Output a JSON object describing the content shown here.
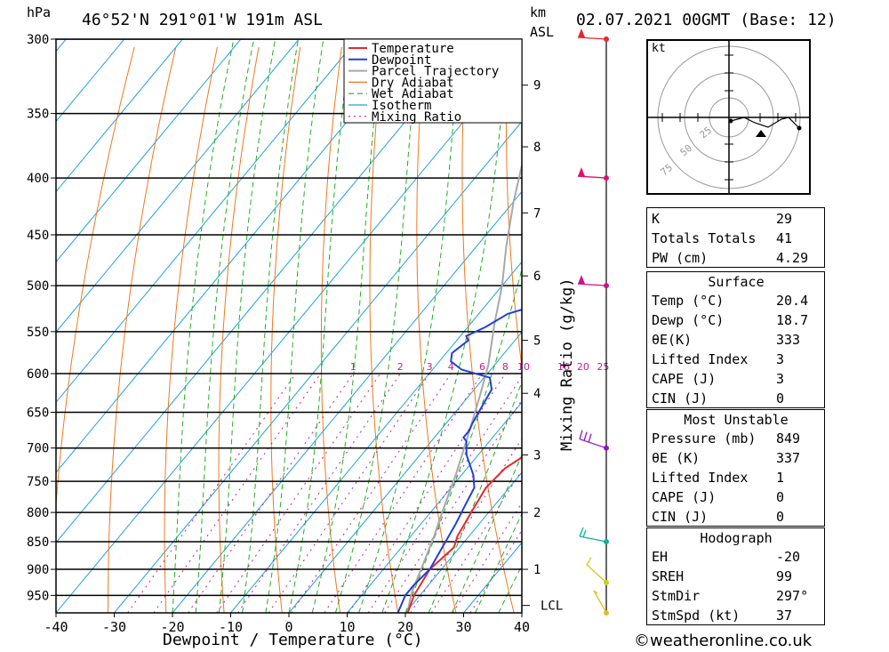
{
  "header": {
    "pressure_unit": "hPa",
    "location": "46°52'N 291°01'W 191m ASL",
    "height_unit": "km",
    "height_ref": "ASL",
    "datetime": "02.07.2021 00GMT (Base: 12)"
  },
  "chart_data": {
    "type": "line",
    "title": "",
    "xlabel": "Dewpoint / Temperature (°C)",
    "ylabel": "",
    "right_label": "Mixing Ratio (g/kg)",
    "xlim": [
      -40,
      40
    ],
    "ylim": [
      985,
      300
    ],
    "log_y": true,
    "x_ticks": [
      "-40",
      "-30",
      "-20",
      "-10",
      "0",
      "10",
      "20",
      "30",
      "40"
    ],
    "pressure_levels": [
      300,
      350,
      400,
      450,
      500,
      550,
      600,
      650,
      700,
      750,
      800,
      850,
      900,
      950
    ],
    "pressure_labels": [
      "300",
      "350",
      "400",
      "450",
      "500",
      "550",
      "600",
      "650",
      "700",
      "750",
      "800",
      "850",
      "900",
      "950"
    ],
    "km_ticks": [
      {
        "km": 1,
        "p": 900
      },
      {
        "km": 2,
        "p": 800
      },
      {
        "km": 3,
        "p": 710
      },
      {
        "km": 4,
        "p": 625
      },
      {
        "km": 5,
        "p": 560
      },
      {
        "km": 6,
        "p": 490
      },
      {
        "km": 7,
        "p": 430
      },
      {
        "km": 8,
        "p": 375
      },
      {
        "km": 9,
        "p": 330
      }
    ],
    "km_labels": [
      "1",
      "2",
      "3",
      "4",
      "5",
      "6",
      "7",
      "8",
      "9"
    ],
    "lcl_label": "LCL",
    "lcl_pressure": 970,
    "mixing_ratio_labels": [
      "1",
      "2",
      "3",
      "4",
      "6",
      "8",
      "10",
      "16",
      "20",
      "25"
    ],
    "legend": [
      "Temperature",
      "Dewpoint",
      "Parcel Trajectory",
      "Dry Adiabat",
      "Wet Adiabat",
      "Isotherm",
      "Mixing Ratio"
    ],
    "legend_position": "top-right",
    "colors": {
      "temperature": "#e8282c",
      "dewpoint": "#2040d8",
      "parcel": "#a8a8a8",
      "dry_adiabat": "#f07820",
      "wet_adiabat": "#20b020",
      "isotherm": "#20a0e0",
      "mixing_ratio": "#d01890"
    },
    "series": [
      {
        "name": "Temperature",
        "points": [
          [
            20.4,
            985
          ],
          [
            19,
            950
          ],
          [
            18,
            900
          ],
          [
            19,
            860
          ],
          [
            18,
            840
          ],
          [
            17,
            800
          ],
          [
            16,
            760
          ],
          [
            16.5,
            730
          ],
          [
            19,
            700
          ],
          [
            19,
            690
          ],
          [
            18,
            670
          ],
          [
            17,
            650
          ],
          [
            13.5,
            610
          ],
          [
            14,
            590
          ],
          [
            11,
            550
          ],
          [
            10.5,
            540
          ],
          [
            8,
            500
          ],
          [
            6,
            470
          ],
          [
            5.5,
            440
          ],
          [
            4,
            420
          ],
          [
            2,
            400
          ],
          [
            -3,
            370
          ],
          [
            -8,
            350
          ],
          [
            -9,
            330
          ],
          [
            -10,
            320
          ],
          [
            -10,
            310
          ],
          [
            -12,
            300
          ]
        ]
      },
      {
        "name": "Dewpoint",
        "points": [
          [
            18.7,
            985
          ],
          [
            17.5,
            950
          ],
          [
            17.5,
            930
          ],
          [
            18,
            900
          ],
          [
            17,
            860
          ],
          [
            16,
            820
          ],
          [
            15,
            790
          ],
          [
            14,
            760
          ],
          [
            12,
            740
          ],
          [
            8,
            710
          ],
          [
            6,
            690
          ],
          [
            5,
            685
          ],
          [
            5,
            675
          ],
          [
            4.5,
            665
          ],
          [
            4,
            650
          ],
          [
            3,
            620
          ],
          [
            1,
            605
          ],
          [
            -5,
            595
          ],
          [
            -8,
            585
          ],
          [
            -9,
            575
          ],
          [
            -8,
            560
          ],
          [
            -9,
            555
          ],
          [
            -7,
            545
          ],
          [
            -5,
            530
          ],
          [
            3,
            510
          ],
          [
            5,
            495
          ],
          [
            2,
            470
          ],
          [
            -1,
            455
          ],
          [
            -3,
            430
          ],
          [
            -3,
            400
          ],
          [
            -3,
            370
          ],
          [
            -4,
            350
          ],
          [
            -6,
            330
          ],
          [
            -11,
            325
          ],
          [
            -20,
            320
          ],
          [
            -22,
            300
          ]
        ]
      },
      {
        "name": "Parcel Trajectory",
        "points": [
          [
            20.4,
            985
          ],
          [
            19,
            960
          ],
          [
            18,
            940
          ],
          [
            16.5,
            900
          ],
          [
            14,
            840
          ],
          [
            12,
            800
          ],
          [
            9,
            740
          ],
          [
            6,
            690
          ],
          [
            2,
            630
          ],
          [
            -1,
            590
          ],
          [
            -6,
            540
          ],
          [
            -10,
            500
          ],
          [
            -15,
            460
          ],
          [
            -20,
            420
          ],
          [
            -25,
            380
          ],
          [
            -30,
            350
          ],
          [
            -33,
            330
          ],
          [
            -35,
            315
          ]
        ]
      }
    ]
  },
  "hodograph": {
    "unit": "kt",
    "rings": [
      "25",
      "50",
      "75"
    ]
  },
  "indices": {
    "k": {
      "label": "K",
      "value": "29"
    },
    "tt": {
      "label": "Totals Totals",
      "value": "41"
    },
    "pw": {
      "label": "PW (cm)",
      "value": "4.29"
    }
  },
  "surface": {
    "title": "Surface",
    "temp": {
      "label": "Temp (°C)",
      "value": "20.4"
    },
    "dewp": {
      "label": "Dewp (°C)",
      "value": "18.7"
    },
    "thetae": {
      "label": "θE(K)",
      "value": "333"
    },
    "li": {
      "label": "Lifted Index",
      "value": "3"
    },
    "cape": {
      "label": "CAPE (J)",
      "value": "3"
    },
    "cin": {
      "label": "CIN (J)",
      "value": "0"
    }
  },
  "most_unstable": {
    "title": "Most Unstable",
    "pressure": {
      "label": "Pressure (mb)",
      "value": "849"
    },
    "thetae": {
      "label": "θE (K)",
      "value": "337"
    },
    "li": {
      "label": "Lifted Index",
      "value": "1"
    },
    "cape": {
      "label": "CAPE (J)",
      "value": "0"
    },
    "cin": {
      "label": "CIN (J)",
      "value": "0"
    }
  },
  "hodograph_table": {
    "title": "Hodograph",
    "eh": {
      "label": "EH",
      "value": "-20"
    },
    "sreh": {
      "label": "SREH",
      "value": "99"
    },
    "stmdir": {
      "label": "StmDir",
      "value": "297°"
    },
    "stmspd": {
      "label": "StmSpd (kt)",
      "value": "37"
    }
  },
  "footer": {
    "copyright": "©weatheronline.co.uk"
  }
}
